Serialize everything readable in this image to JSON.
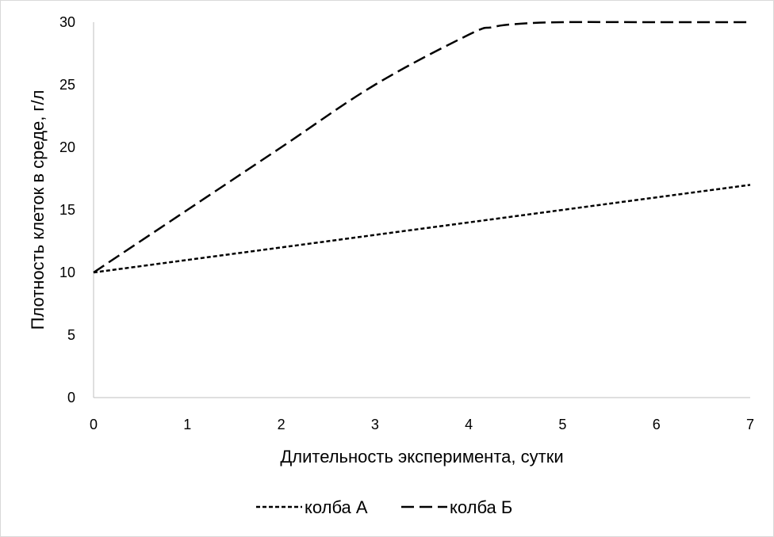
{
  "chart_data": {
    "type": "line",
    "title": "",
    "xlabel": "Длительность эксперимента, сутки",
    "ylabel": "Плотность клеток в среде, г/л",
    "xlim": [
      0,
      7
    ],
    "ylim": [
      0,
      30
    ],
    "xticks": [
      "0",
      "1",
      "2",
      "3",
      "4",
      "5",
      "6",
      "7"
    ],
    "yticks": [
      "0",
      "5",
      "10",
      "15",
      "20",
      "25",
      "30"
    ],
    "grid": false,
    "legend_position": "bottom",
    "series": [
      {
        "name": "колба А",
        "line_style": "short-dash",
        "color": "#000000",
        "x": [
          0,
          1,
          2,
          3,
          4,
          5,
          6,
          7
        ],
        "y": [
          10,
          11,
          12,
          13,
          14,
          15,
          16,
          17
        ]
      },
      {
        "name": "колба Б",
        "line_style": "long-dash",
        "color": "#000000",
        "x": [
          0,
          1,
          2,
          3,
          4,
          4.25,
          4.5,
          5,
          6,
          7
        ],
        "y": [
          10,
          15,
          20,
          25,
          29,
          29.6,
          29.85,
          30,
          30,
          30
        ]
      }
    ]
  }
}
